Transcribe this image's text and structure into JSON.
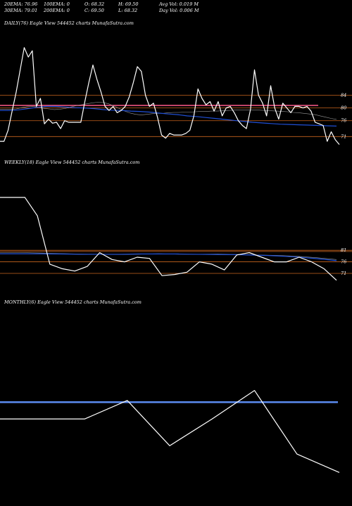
{
  "header": {
    "ema20": "20EMA: 76.96",
    "ema100": "100EMA: 0",
    "open": "O: 68.32",
    "high": "H: 69.50",
    "avg_vol": "Avg Vol: 0.019  M",
    "ema30": "30EMA: 79.01",
    "ema200": "200EMA: 0",
    "close": "C: 69.50",
    "low": "L: 68.32",
    "day_vol": "Day Vol: 0.006  M"
  },
  "panels": {
    "daily": {
      "title": "DAILY(76) Eagle  View  544452  charts MunafaSutra.com"
    },
    "weekly": {
      "title": "WEEKLY(18) Eagle  View  544452  charts MunafaSutra.com"
    },
    "monthly": {
      "title": "MONTHLY(6) Eagle  View  544452  charts MunafaSutra.com"
    }
  },
  "colors": {
    "background": "#000000",
    "price": "#ffffff",
    "ema": "#1f4fd6",
    "level": "#c8641e",
    "highlight": "#ff5b8a",
    "monthly_ema": "#5b8bef"
  },
  "chart_data": [
    {
      "type": "line",
      "name": "daily",
      "ylim": [
        64,
        106
      ],
      "y_ticks": [
        84,
        80,
        76,
        71
      ],
      "levels": [
        84,
        80,
        76,
        71
      ],
      "highlight_level": 80.8,
      "close": [
        69.5,
        69.5,
        73,
        79,
        85,
        92,
        99,
        96,
        98,
        80.5,
        83,
        75,
        76.5,
        75.2,
        75.5,
        73.5,
        76,
        75.5,
        75.5,
        75.5,
        75.5,
        82,
        88,
        93.5,
        89,
        85,
        80.5,
        79.2,
        80.5,
        78.5,
        79.2,
        80.5,
        83.5,
        88,
        93,
        91.5,
        84,
        80.5,
        81.5,
        77,
        71.5,
        70.5,
        72,
        71.5,
        71.5,
        71.5,
        72,
        73,
        77.5,
        86,
        83,
        81,
        82,
        79,
        82,
        77.5,
        80,
        80.5,
        78.5,
        76,
        74.5,
        73.5,
        79.5,
        92,
        84,
        81.5,
        77.5,
        87,
        80,
        76.5,
        81.5,
        80,
        78.5,
        80.5,
        80.5,
        80,
        80.5,
        79,
        75.5,
        75,
        74.5,
        69.5,
        72.5,
        70,
        68.5
      ],
      "ema30": [
        79.6,
        79.6,
        79.6,
        79.7,
        80.1,
        80.4,
        80.5,
        80.3,
        79.9,
        79.7,
        79.5,
        79.6,
        79.8,
        80.3,
        80.7,
        81,
        81.3,
        81.6,
        81.8,
        81.7,
        81.3,
        80.6,
        79.8,
        79,
        78.4,
        78,
        77.8,
        78,
        78.2,
        78.3,
        78.3,
        78.5,
        78.6,
        78.6,
        78.7,
        78.7,
        78.8,
        78.9,
        78.9,
        79,
        79,
        79.1,
        79.2,
        79.3,
        79.4,
        79.4,
        79.4,
        79.4,
        79.3,
        79.2,
        79.1,
        79,
        78.9,
        78.8,
        78.6,
        78.5,
        78.3,
        78.1,
        77.9,
        77.5,
        77.1,
        76.7,
        76.4
      ],
      "ema20": [
        79.2,
        79.2,
        79.4,
        79.8,
        80.2,
        80.5,
        80.5,
        80.3,
        80.1,
        80,
        79.8,
        79.5,
        79.3,
        79.2,
        79,
        78.9,
        78.7,
        78.4,
        78.1,
        77.9,
        77.5,
        77.3,
        77,
        76.7,
        76.4,
        76.1,
        75.8,
        75.5,
        75.3,
        75.1,
        74.9,
        74.8,
        74.7,
        74.6,
        74.5,
        74.4,
        74.3
      ]
    },
    {
      "type": "line",
      "name": "weekly",
      "ylim": [
        60,
        118
      ],
      "y_ticks": [
        81,
        76,
        71
      ],
      "levels": [
        81,
        80.5,
        76,
        71
      ],
      "close": [
        104,
        104,
        104,
        96,
        75,
        73,
        72,
        74,
        80,
        77,
        76,
        78,
        77.5,
        70,
        70.5,
        71.5,
        76,
        75,
        72.5,
        79,
        80,
        78,
        76,
        76,
        78,
        76,
        73,
        68
      ],
      "ema30": [
        80,
        80,
        79.8,
        79.6,
        79.4,
        79.3,
        79.2,
        79.3,
        79.5,
        79.3,
        79.3,
        79.4,
        79.2,
        79,
        78.8,
        78.4,
        77.8,
        77
      ],
      "ema20": [
        79.5,
        79.5,
        79.5,
        79.4,
        79.3,
        79.3,
        79.3,
        79.4,
        79.4,
        79.4,
        79.3,
        79.2,
        79.1,
        78.9,
        78.6,
        78.1,
        77.4,
        76.5
      ]
    },
    {
      "type": "line",
      "name": "monthly",
      "ylim": [
        48,
        108
      ],
      "close": [
        74,
        74,
        74,
        79.5,
        66,
        74,
        82.5,
        63.5,
        58
      ],
      "ema_level": 79
    }
  ]
}
